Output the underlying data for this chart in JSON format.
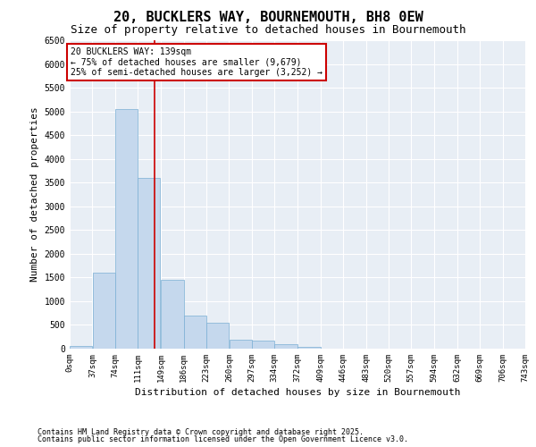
{
  "title_line1": "20, BUCKLERS WAY, BOURNEMOUTH, BH8 0EW",
  "title_line2": "Size of property relative to detached houses in Bournemouth",
  "xlabel": "Distribution of detached houses by size in Bournemouth",
  "ylabel": "Number of detached properties",
  "bar_color": "#c5d8ed",
  "bar_edge_color": "#7bafd4",
  "bg_color": "#e8eef5",
  "grid_color": "#ffffff",
  "vline_x": 139,
  "vline_color": "#cc0000",
  "annotation_box_text": "20 BUCKLERS WAY: 139sqm\n← 75% of detached houses are smaller (9,679)\n25% of semi-detached houses are larger (3,252) →",
  "annotation_box_color": "#cc0000",
  "annotation_text_size": 7.0,
  "ylim": [
    0,
    6500
  ],
  "xlim": [
    0,
    743
  ],
  "bin_edges": [
    0,
    37,
    74,
    111,
    149,
    186,
    223,
    260,
    297,
    334,
    372,
    409,
    446,
    483,
    520,
    557,
    594,
    632,
    669,
    706,
    743
  ],
  "bar_heights": [
    60,
    1600,
    5050,
    3600,
    1450,
    700,
    550,
    190,
    170,
    100,
    30,
    0,
    0,
    0,
    0,
    0,
    0,
    0,
    0,
    0
  ],
  "tick_labels": [
    "0sqm",
    "37sqm",
    "74sqm",
    "111sqm",
    "149sqm",
    "186sqm",
    "223sqm",
    "260sqm",
    "297sqm",
    "334sqm",
    "372sqm",
    "409sqm",
    "446sqm",
    "483sqm",
    "520sqm",
    "557sqm",
    "594sqm",
    "632sqm",
    "669sqm",
    "706sqm",
    "743sqm"
  ],
  "yticks": [
    0,
    500,
    1000,
    1500,
    2000,
    2500,
    3000,
    3500,
    4000,
    4500,
    5000,
    5500,
    6000,
    6500
  ],
  "footer_line1": "Contains HM Land Registry data © Crown copyright and database right 2025.",
  "footer_line2": "Contains public sector information licensed under the Open Government Licence v3.0.",
  "title_fontsize": 11,
  "subtitle_fontsize": 9,
  "axis_label_fontsize": 8,
  "tick_fontsize": 6.5,
  "footer_fontsize": 6
}
